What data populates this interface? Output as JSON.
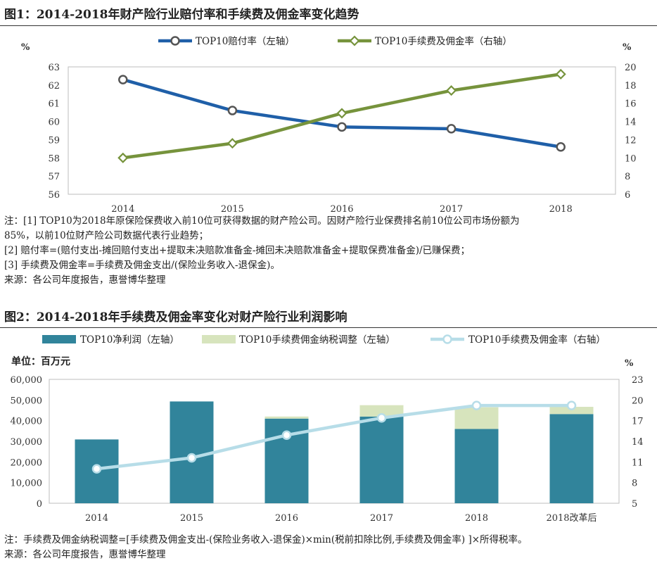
{
  "figure1": {
    "title": "图1：2014-2018年财产险行业赔付率和手续费及佣金率变化趋势",
    "notes": [
      "注：[1] TOP10为2018年原保险保费收入前10位可获得数据的财产险公司。因财产险行业保费排名前10位公司市场份额为",
      "85%，以前10位财产险公司数据代表行业趋势；",
      "[2] 赔付率=(赔付支出-摊回赔付支出+提取未决赔款准备金-摊回未决赔款准备金+提取保费准备金)/已赚保费；",
      "[3] 手续费及佣金率=手续费及佣金支出/(保险业务收入-退保金)。",
      "来源：各公司年度报告，惠誉博华整理"
    ]
  },
  "figure2": {
    "title": "图2：2014-2018年手续费及佣金率变化对财产险行业利润影响",
    "notes": [
      "注：手续费及佣金纳税调整=[手续费及佣金支出-(保险业务收入-退保金)×min(税前扣除比例,手续费及佣金率) ]×所得税率。",
      "来源：各公司年度报告，惠誉博华整理"
    ]
  },
  "chart_data": [
    {
      "type": "line",
      "x": [
        "2014",
        "2015",
        "2016",
        "2017",
        "2018"
      ],
      "left_unit": "%",
      "right_unit": "%",
      "ylim_left": [
        56,
        63
      ],
      "yticks_left": [
        "56",
        "57",
        "58",
        "59",
        "60",
        "61",
        "62",
        "63"
      ],
      "ylim_right": [
        6,
        20
      ],
      "yticks_right": [
        "6",
        "8",
        "10",
        "12",
        "14",
        "16",
        "18",
        "20"
      ],
      "legend_position": "top",
      "series": [
        {
          "name": "TOP10赔付率（左轴）",
          "axis": "left",
          "color": "#1f5fa8",
          "marker": "circle",
          "values": [
            62.3,
            60.6,
            59.7,
            59.6,
            58.6
          ]
        },
        {
          "name": "TOP10手续费及佣金率（右轴）",
          "axis": "right",
          "color": "#76933c",
          "marker": "diamond",
          "values": [
            10.0,
            11.6,
            14.9,
            17.4,
            19.2
          ]
        }
      ]
    },
    {
      "type": "bar",
      "categories": [
        "2014",
        "2015",
        "2016",
        "2017",
        "2018",
        "2018改革后"
      ],
      "unit_label": "单位：百万元",
      "right_unit": "%",
      "ylim_left": [
        0,
        60000
      ],
      "yticks_left": [
        "0",
        "10,000",
        "20,000",
        "30,000",
        "40,000",
        "50,000",
        "60,000"
      ],
      "ylim_right": [
        5,
        23
      ],
      "yticks_right": [
        "5",
        "8",
        "11",
        "14",
        "17",
        "20",
        "23"
      ],
      "legend_position": "top",
      "series": [
        {
          "name": "TOP10净利润（左轴）",
          "axis": "left",
          "kind": "bar",
          "color": "#31849b",
          "values": [
            30900,
            49300,
            41000,
            42000,
            36000,
            43200
          ]
        },
        {
          "name": "TOP10手续费佣金纳税调整（左轴）",
          "axis": "left",
          "kind": "bar-stacked",
          "color": "#d7e4bd",
          "values": [
            0,
            0,
            1000,
            5500,
            10500,
            3500
          ]
        },
        {
          "name": "TOP10手续费及佣金率（右轴）",
          "axis": "right",
          "kind": "line",
          "color": "#b7dde8",
          "marker": "circle",
          "values": [
            10.0,
            11.6,
            14.9,
            17.4,
            19.2,
            19.2
          ]
        }
      ]
    }
  ]
}
